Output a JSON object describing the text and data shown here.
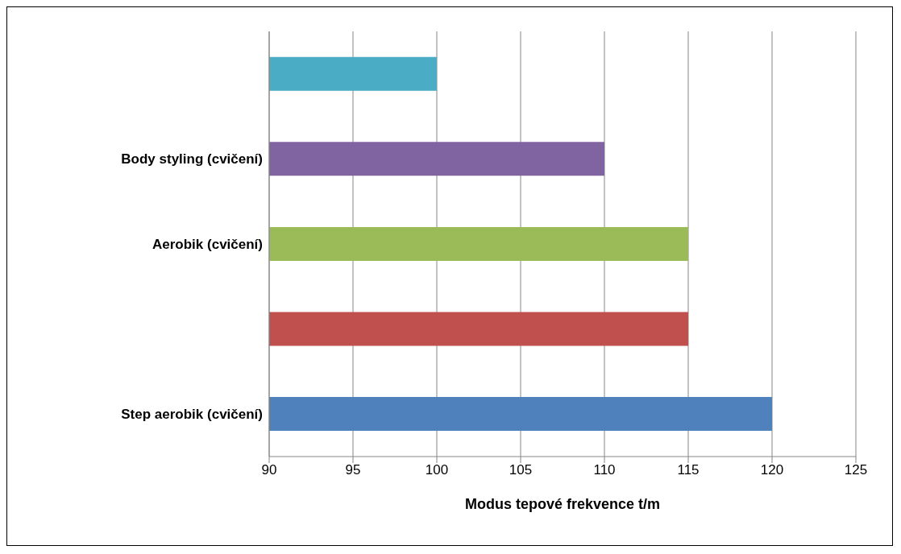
{
  "chart_data": {
    "type": "bar",
    "orientation": "horizontal",
    "xlabel": "Modus tepové frekvence t/m",
    "categories": [
      null,
      "Body styling (cvičení)",
      "Aerobik (cvičení)",
      null,
      "Step aerobik (cvičení)"
    ],
    "values": [
      100,
      110,
      115,
      115,
      120
    ],
    "colors": [
      "#4bacc6",
      "#8064a2",
      "#9bbb59",
      "#c0504d",
      "#4f81bd"
    ],
    "xlim": [
      90,
      125
    ],
    "xticks": [
      90,
      95,
      100,
      105,
      110,
      115,
      120,
      125
    ],
    "grid": "x",
    "legend": false
  }
}
